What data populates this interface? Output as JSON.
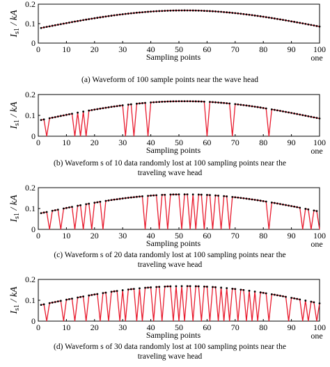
{
  "chart_data": [
    {
      "type": "line",
      "caption_lines": [
        "(a) Waveform of 100 sample points near the wave head"
      ],
      "xlabel": "Sampling points",
      "ylabel": "I",
      "ylabel_sub": "s1",
      "ylabel_unit": " / kA",
      "x_extra_label": "one",
      "xlim": [
        0,
        100
      ],
      "ylim": [
        0,
        0.2
      ],
      "xticks": [
        "0",
        "10",
        "20",
        "30",
        "40",
        "50",
        "60",
        "70",
        "80",
        "90",
        "100"
      ],
      "yticks": [
        "0",
        "0.1",
        "0.2"
      ],
      "base": {
        "start": 0.075,
        "peak": 0.168,
        "peak_x": 52,
        "end": 0.085
      },
      "lost_points": []
    },
    {
      "type": "line",
      "caption_lines": [
        "(b) Waveform s of 10 data randomly lost at 100 sampling points near the",
        "traveling wave head"
      ],
      "xlabel": "Sampling points",
      "ylabel": "I",
      "ylabel_sub": "s1",
      "ylabel_unit": " / kA",
      "x_extra_label": "one",
      "xlim": [
        0,
        100
      ],
      "ylim": [
        0,
        0.2
      ],
      "xticks": [
        "0",
        "10",
        "20",
        "30",
        "40",
        "50",
        "60",
        "70",
        "80",
        "90",
        "100"
      ],
      "yticks": [
        "0",
        "0.1",
        "0.2"
      ],
      "base": {
        "start": 0.075,
        "peak": 0.168,
        "peak_x": 52,
        "end": 0.085
      },
      "lost_points": [
        3,
        13,
        15,
        17,
        31,
        34,
        39,
        60,
        69,
        82
      ]
    },
    {
      "type": "line",
      "caption_lines": [
        "(c) Waveform s of 20 data randomly lost at 100 sampling points near the",
        "traveling wave head"
      ],
      "xlabel": "Sampling points",
      "ylabel": "I",
      "ylabel_sub": "s1",
      "ylabel_unit": " / kA",
      "x_extra_label": "one",
      "xlim": [
        0,
        100
      ],
      "ylim": [
        0,
        0.2
      ],
      "xticks": [
        "0",
        "10",
        "20",
        "30",
        "40",
        "50",
        "60",
        "70",
        "80",
        "90",
        "100"
      ],
      "yticks": [
        "0",
        "0.1",
        "0.2"
      ],
      "base": {
        "start": 0.075,
        "peak": 0.168,
        "peak_x": 52,
        "end": 0.085
      },
      "lost_points": [
        4,
        8,
        13,
        16,
        19,
        23,
        38,
        43,
        46,
        51,
        54,
        56,
        59,
        62,
        65,
        68,
        82,
        94,
        97,
        100
      ]
    },
    {
      "type": "line",
      "caption_lines": [
        "(d) Waveform s of 30 data randomly lost at 100 sampling points near the",
        "traveling wave head"
      ],
      "xlabel": "Sampling points",
      "ylabel": "I",
      "ylabel_sub": "s1",
      "ylabel_unit": " / kA",
      "x_extra_label": "one",
      "xlim": [
        0,
        100
      ],
      "ylim": [
        0,
        0.2
      ],
      "xticks": [
        "0",
        "10",
        "20",
        "30",
        "40",
        "50",
        "60",
        "70",
        "80",
        "90",
        "100"
      ],
      "yticks": [
        "0",
        "0.1",
        "0.2"
      ],
      "base": {
        "start": 0.075,
        "peak": 0.168,
        "peak_x": 52,
        "end": 0.085
      },
      "lost_points": [
        3,
        9,
        13,
        17,
        22,
        25,
        29,
        31,
        35,
        37,
        41,
        44,
        48,
        50,
        52,
        55,
        58,
        61,
        64,
        66,
        68,
        71,
        74,
        76,
        78,
        82,
        89,
        94,
        96,
        99
      ]
    }
  ],
  "colors": {
    "line": "#e8192c",
    "marker": "#000000",
    "axis": "#000000"
  }
}
